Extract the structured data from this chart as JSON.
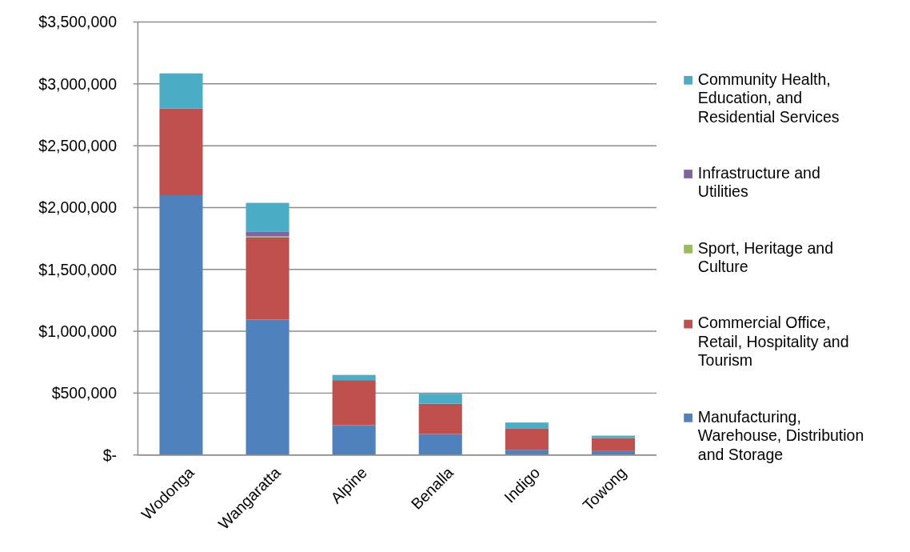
{
  "chart_data": {
    "type": "bar",
    "stacked": true,
    "categories": [
      "Wodonga",
      "Wangaratta",
      "Alpine",
      "Benalla",
      "Indigo",
      "Towong"
    ],
    "series": [
      {
        "name": "Manufacturing, Warehouse, Distribution and Storage",
        "color": "#4f81bd",
        "values": [
          2100000,
          1095000,
          240000,
          170000,
          42000,
          36000
        ]
      },
      {
        "name": "Commercial Office, Retail, Hospitality and Tourism",
        "color": "#c0504d",
        "values": [
          700000,
          665000,
          365000,
          245000,
          170000,
          100000
        ]
      },
      {
        "name": "Sport, Heritage and Culture",
        "color": "#9bbb59",
        "values": [
          0,
          10000,
          0,
          0,
          0,
          0
        ]
      },
      {
        "name": "Infrastructure and Utilities",
        "color": "#8064a2",
        "values": [
          0,
          33000,
          0,
          0,
          0,
          0
        ]
      },
      {
        "name": "Community Health, Education, and Residential Services",
        "color": "#4bacc6",
        "values": [
          285000,
          235000,
          42000,
          80000,
          50000,
          20000
        ]
      }
    ],
    "ylim": [
      0,
      3500000
    ],
    "yticks": [
      {
        "value": 0,
        "label": "$-"
      },
      {
        "value": 500000,
        "label": "$500,000"
      },
      {
        "value": 1000000,
        "label": "$1,000,000"
      },
      {
        "value": 1500000,
        "label": "$1,500,000"
      },
      {
        "value": 2000000,
        "label": "$2,000,000"
      },
      {
        "value": 2500000,
        "label": "$2,500,000"
      },
      {
        "value": 3000000,
        "label": "$3,000,000"
      },
      {
        "value": 3500000,
        "label": "$3,500,000"
      }
    ],
    "grid": "y",
    "legend": "right"
  }
}
